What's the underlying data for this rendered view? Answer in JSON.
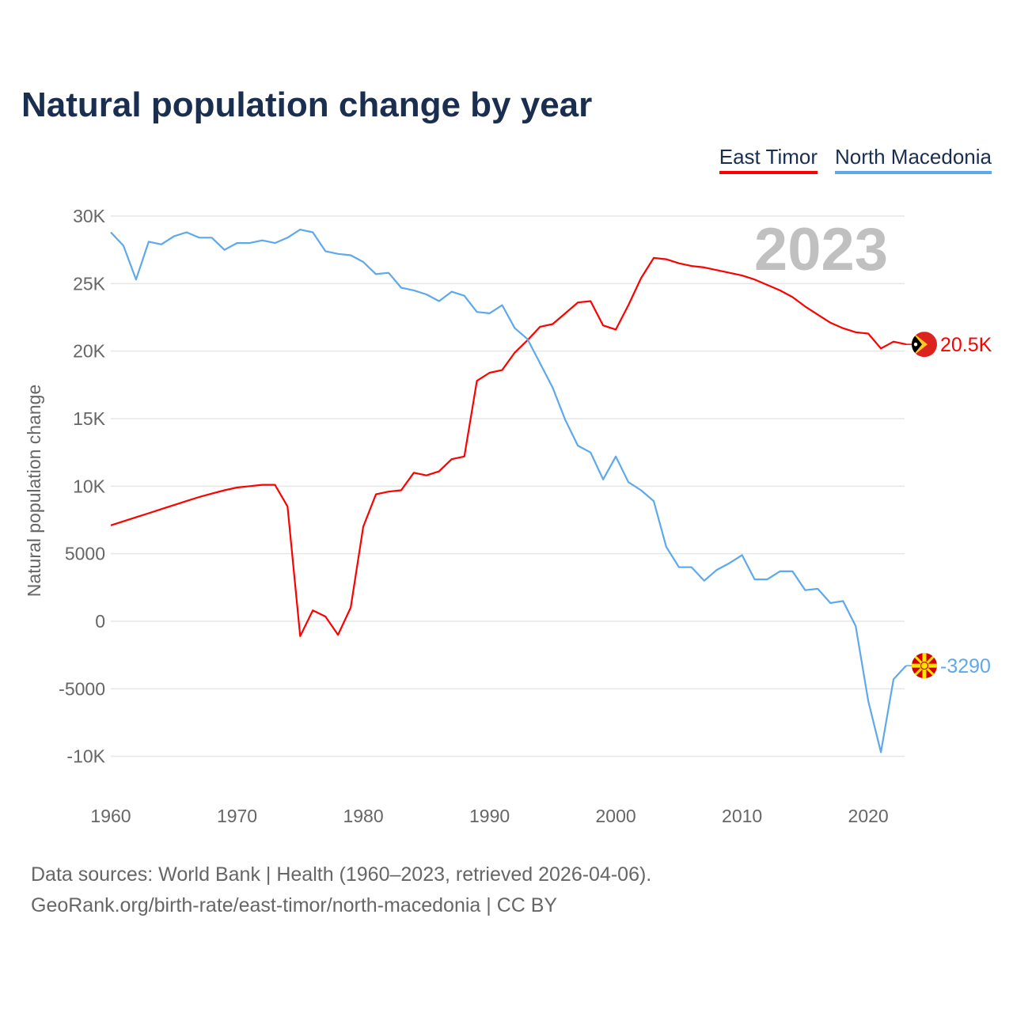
{
  "title": "Natural population change by year",
  "legend": [
    {
      "label": "East Timor",
      "color": "#ff0000"
    },
    {
      "label": "North Macedonia",
      "color": "#5ea8ec"
    }
  ],
  "year_watermark": "2023",
  "footer": {
    "line1": "Data sources: World Bank | Health (1960–2023, retrieved 2026-04-06).",
    "line2": "GeoRank.org/birth-rate/east-timor/north-macedonia | CC BY"
  },
  "chart_data": {
    "type": "line",
    "title": "Natural population change by year",
    "xlabel": "",
    "ylabel": "Natural population change",
    "xlim": [
      1960,
      2023
    ],
    "ylim": [
      -10000,
      30000
    ],
    "x_ticks": [
      1960,
      1970,
      1980,
      1990,
      2000,
      2010,
      2020
    ],
    "x_tick_labels": [
      "1960",
      "1970",
      "1980",
      "1990",
      "2000",
      "2010",
      "2020"
    ],
    "y_ticks": [
      -10000,
      -5000,
      0,
      5000,
      10000,
      15000,
      20000,
      25000,
      30000
    ],
    "y_tick_labels": [
      "-10K",
      "-5000",
      "0",
      "5000",
      "10K",
      "15K",
      "20K",
      "25K",
      "30K"
    ],
    "grid": true,
    "legend_position": "top-right",
    "x_start": 1960,
    "series": [
      {
        "name": "East Timor",
        "color": "#ff0000",
        "end_label": "20.5K",
        "flag": "east-timor",
        "values": [
          7100,
          7400,
          7700,
          8000,
          8300,
          8600,
          8900,
          9200,
          9450,
          9700,
          9900,
          10000,
          10100,
          10100,
          8500,
          -1100,
          800,
          350,
          -1000,
          1000,
          7000,
          9400,
          9600,
          9700,
          11000,
          10800,
          11100,
          12000,
          12200,
          17800,
          18400,
          18600,
          19900,
          20800,
          21800,
          22000,
          22800,
          23600,
          23700,
          21900,
          21600,
          23400,
          25400,
          26900,
          26800,
          26500,
          26300,
          26200,
          26000,
          25800,
          25600,
          25300,
          24900,
          24500,
          24000,
          23300,
          22700,
          22100,
          21700,
          21400,
          21300,
          20200,
          20700,
          20500
        ]
      },
      {
        "name": "North Macedonia",
        "color": "#5ea8ec",
        "end_label": "-3290",
        "flag": "north-macedonia",
        "values": [
          28800,
          27800,
          25300,
          28100,
          27900,
          28500,
          28800,
          28400,
          28400,
          27500,
          28000,
          28000,
          28200,
          28000,
          28400,
          29000,
          28800,
          27400,
          27200,
          27100,
          26600,
          25700,
          25800,
          24700,
          24500,
          24200,
          23700,
          24400,
          24100,
          22900,
          22800,
          23400,
          21700,
          20900,
          19100,
          17300,
          14900,
          13000,
          12500,
          10500,
          12200,
          10300,
          9700,
          8900,
          5500,
          4000,
          4000,
          3000,
          3800,
          4300,
          4900,
          3100,
          3100,
          3700,
          3700,
          2300,
          2400,
          1350,
          1500,
          -350,
          -5900,
          -9700,
          -4300,
          -3290
        ]
      }
    ]
  }
}
